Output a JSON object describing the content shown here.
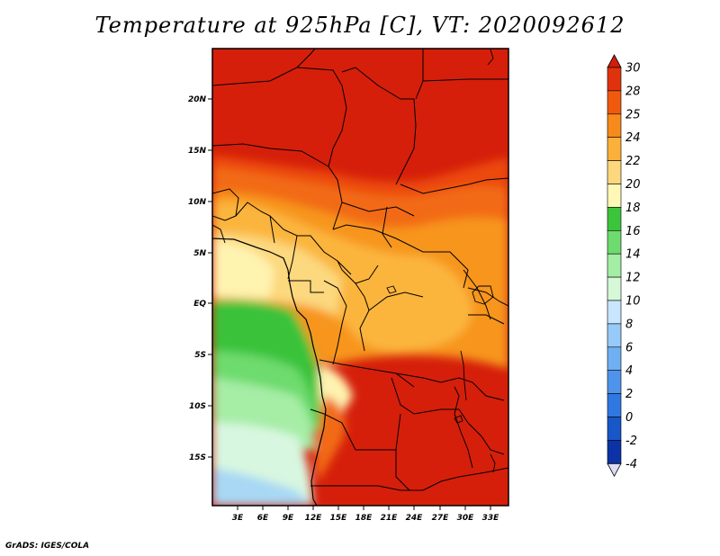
{
  "title": "Temperature at 925hPa [C], VT: 2020092612",
  "credit": "GrADS: IGES/COLA",
  "map": {
    "lat_labels": [
      "20N",
      "15N",
      "10N",
      "5N",
      "EQ",
      "5S",
      "10S",
      "15S"
    ],
    "lon_labels": [
      "3E",
      "6E",
      "9E",
      "12E",
      "15E",
      "18E",
      "21E",
      "24E",
      "27E",
      "30E",
      "33E"
    ]
  },
  "colorbar": {
    "labels": [
      "30",
      "28",
      "25",
      "24",
      "22",
      "20",
      "18",
      "16",
      "14",
      "12",
      "10",
      "8",
      "6",
      "4",
      "2",
      "0",
      "-2",
      "-4"
    ],
    "colors": [
      "#d01e0a",
      "#e1320e",
      "#f05a0f",
      "#f68a1a",
      "#fbb03a",
      "#fcd77c",
      "#fff7b5",
      "#3cc43c",
      "#6ddb6d",
      "#a4eda4",
      "#d6f8d6",
      "#c8e6ff",
      "#96caf8",
      "#6fb0f3",
      "#4f94ec",
      "#2f78e2",
      "#1757c8",
      "#0b33a6",
      "#04167a"
    ]
  }
}
